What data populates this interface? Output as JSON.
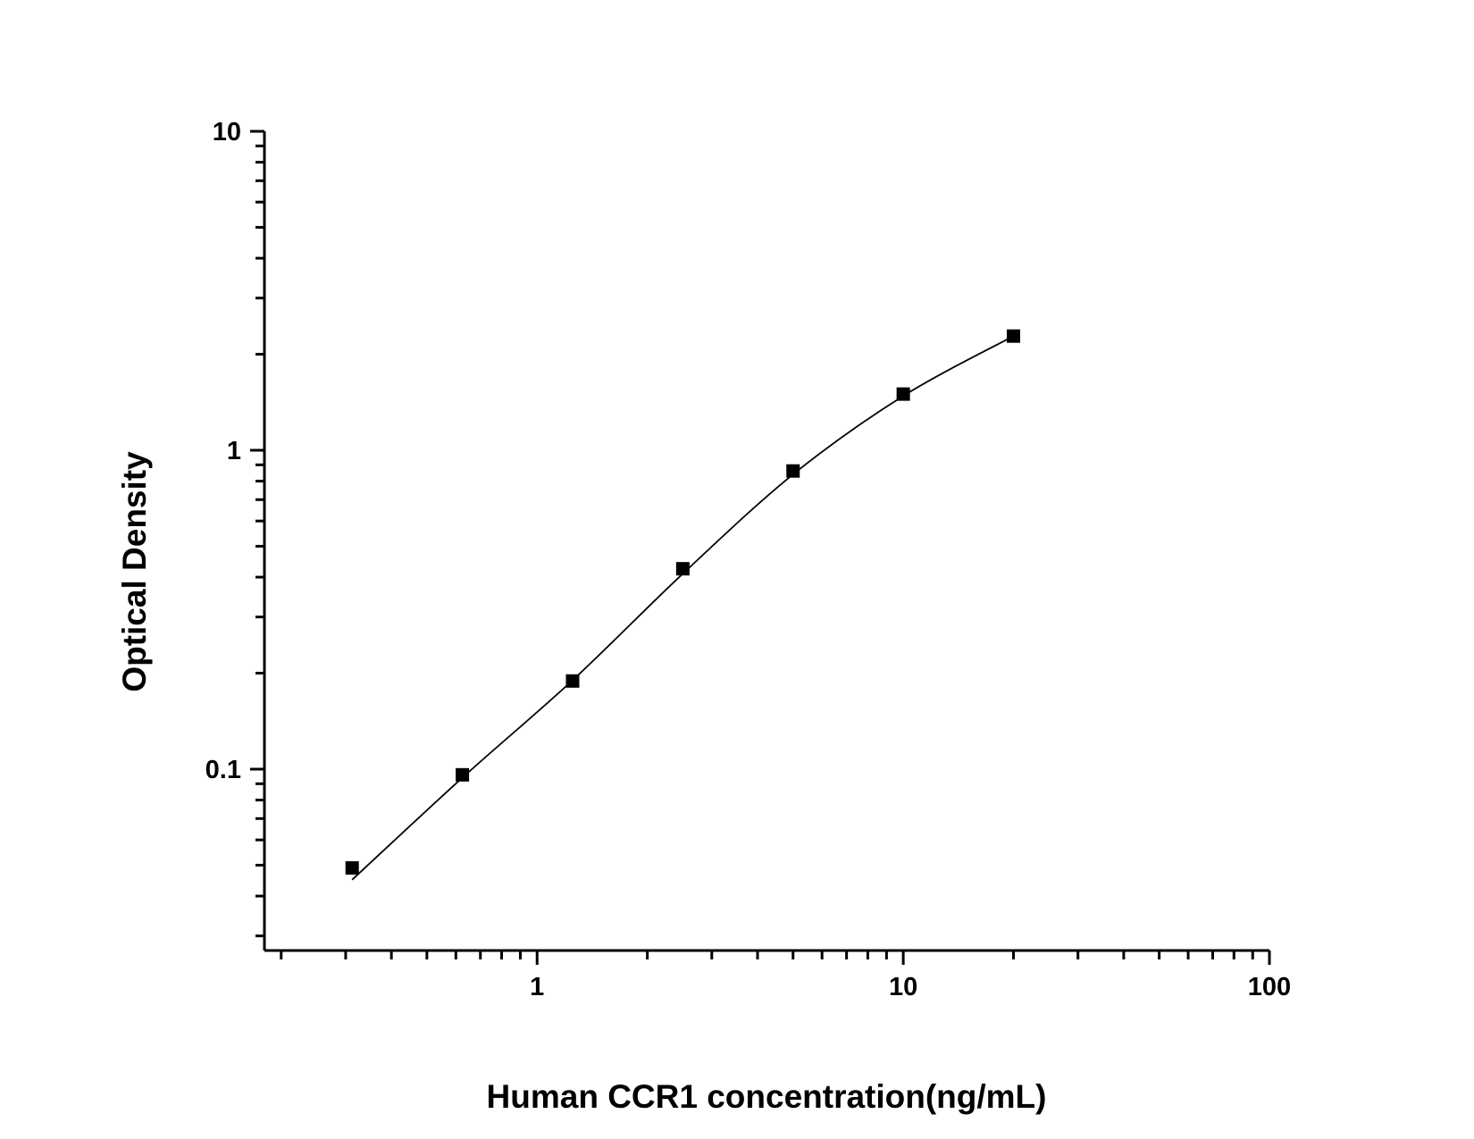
{
  "chart_data": {
    "type": "scatter",
    "title": "",
    "xlabel": "Human CCR1 concentration(ng/mL)",
    "ylabel": "Optical Density",
    "x_scale": "log",
    "y_scale": "log",
    "xlim": [
      0.18,
      100
    ],
    "ylim": [
      0.027,
      10
    ],
    "x_ticks": [
      1,
      10,
      100
    ],
    "x_tick_labels": [
      "1",
      "10",
      "100"
    ],
    "y_ticks": [
      0.1,
      1,
      10
    ],
    "y_tick_labels": [
      "0.1",
      "1",
      "10"
    ],
    "grid": false,
    "legend": "none",
    "marker": "square",
    "color": "#000000",
    "series": [
      {
        "x": [
          0.3125,
          0.625,
          1.25,
          2.5,
          5,
          10,
          20
        ],
        "y": [
          0.049,
          0.096,
          0.189,
          0.425,
          0.861,
          1.5,
          2.28
        ]
      }
    ],
    "fit_curve": {
      "x": [
        0.3125,
        0.625,
        1.25,
        2.5,
        5,
        10,
        20
      ],
      "y": [
        0.045,
        0.094,
        0.19,
        0.41,
        0.84,
        1.48,
        2.28
      ]
    }
  }
}
